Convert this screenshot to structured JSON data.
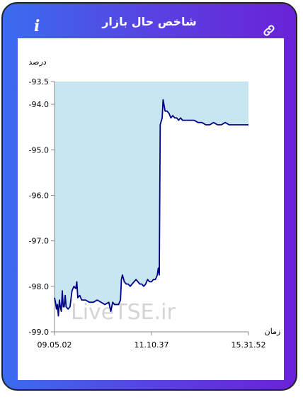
{
  "header": {
    "title": "شاخص حال بازار",
    "info_icon": "info-icon",
    "link_icon": "link-icon"
  },
  "colors": {
    "frame_gradient_start": "#3a6cf0",
    "frame_gradient_end": "#6a22d8",
    "line": "#00008b",
    "fill": "#c8e6f0"
  },
  "watermark": "LiveTSE.ir",
  "chart_data": {
    "type": "area",
    "ylabel": "درصد",
    "xlabel": "زمان",
    "ylim": [
      -99.0,
      -93.5
    ],
    "yticks": [
      -93.5,
      -94.0,
      -95.0,
      -96.0,
      -97.0,
      -98.0,
      -99.0
    ],
    "ytick_labels": [
      "-93.5",
      "-94.0",
      "-95.0",
      "-96.0",
      "-97.0",
      "-98.0",
      "-99.0"
    ],
    "xticks": [
      "09.05.02",
      "11.10.37",
      "15.31.52"
    ],
    "grid": false,
    "series": [
      {
        "values": [
          [
            0.0,
            -98.25
          ],
          [
            0.5,
            -98.35
          ],
          [
            1.0,
            -98.5
          ],
          [
            1.5,
            -98.4
          ],
          [
            2.0,
            -98.65
          ],
          [
            2.5,
            -98.3
          ],
          [
            3.0,
            -98.45
          ],
          [
            3.5,
            -98.55
          ],
          [
            4.0,
            -98.1
          ],
          [
            4.5,
            -98.45
          ],
          [
            5.0,
            -98.45
          ],
          [
            5.5,
            -98.2
          ],
          [
            6.0,
            -98.45
          ],
          [
            7.0,
            -98.5
          ],
          [
            8.0,
            -98.45
          ],
          [
            9.0,
            -98.1
          ],
          [
            10.0,
            -98.0
          ],
          [
            11.0,
            -98.05
          ],
          [
            11.5,
            -97.9
          ],
          [
            12.0,
            -98.25
          ],
          [
            13.0,
            -98.2
          ],
          [
            14.0,
            -98.3
          ],
          [
            16.0,
            -98.3
          ],
          [
            18.0,
            -98.35
          ],
          [
            20.0,
            -98.35
          ],
          [
            22.0,
            -98.3
          ],
          [
            24.0,
            -98.35
          ],
          [
            26.0,
            -98.4
          ],
          [
            28.0,
            -98.35
          ],
          [
            29.0,
            -98.55
          ],
          [
            30.0,
            -98.35
          ],
          [
            31.0,
            -98.4
          ],
          [
            33.0,
            -98.4
          ],
          [
            34.0,
            -98.3
          ],
          [
            34.5,
            -97.85
          ],
          [
            35.0,
            -97.75
          ],
          [
            36.0,
            -97.9
          ],
          [
            37.0,
            -97.95
          ],
          [
            38.0,
            -97.95
          ],
          [
            39.0,
            -98.0
          ],
          [
            40.0,
            -97.95
          ],
          [
            41.0,
            -97.9
          ],
          [
            42.0,
            -97.85
          ],
          [
            43.0,
            -97.9
          ],
          [
            44.0,
            -97.95
          ],
          [
            45.0,
            -97.95
          ],
          [
            46.0,
            -98.0
          ],
          [
            47.0,
            -97.95
          ],
          [
            48.0,
            -97.85
          ],
          [
            49.0,
            -97.9
          ],
          [
            50.0,
            -97.9
          ],
          [
            51.0,
            -97.85
          ],
          [
            52.0,
            -97.85
          ],
          [
            53.0,
            -97.75
          ],
          [
            53.5,
            -97.6
          ],
          [
            54.0,
            -97.75
          ],
          [
            54.5,
            -94.45
          ],
          [
            55.5,
            -94.3
          ],
          [
            56.0,
            -93.9
          ],
          [
            57.0,
            -94.15
          ],
          [
            58.0,
            -94.15
          ],
          [
            59.0,
            -94.2
          ],
          [
            60.0,
            -94.3
          ],
          [
            61.0,
            -94.25
          ],
          [
            62.0,
            -94.3
          ],
          [
            63.0,
            -94.3
          ],
          [
            64.0,
            -94.35
          ],
          [
            65.0,
            -94.3
          ],
          [
            66.0,
            -94.35
          ],
          [
            68.0,
            -94.35
          ],
          [
            70.0,
            -94.35
          ],
          [
            72.0,
            -94.35
          ],
          [
            74.0,
            -94.4
          ],
          [
            76.0,
            -94.4
          ],
          [
            78.0,
            -94.45
          ],
          [
            80.0,
            -94.45
          ],
          [
            82.0,
            -94.4
          ],
          [
            84.0,
            -94.45
          ],
          [
            86.0,
            -94.45
          ],
          [
            88.0,
            -94.4
          ],
          [
            90.0,
            -94.45
          ],
          [
            92.0,
            -94.45
          ],
          [
            94.0,
            -94.45
          ],
          [
            96.0,
            -94.45
          ],
          [
            98.0,
            -94.45
          ],
          [
            100.0,
            -94.45
          ]
        ]
      }
    ]
  }
}
